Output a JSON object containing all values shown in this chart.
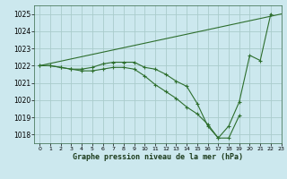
{
  "title": "Graphe pression niveau de la mer (hPa)",
  "background_color": "#cce8ee",
  "grid_color": "#aacccc",
  "line_color": "#2d6e2d",
  "xlim": [
    -0.5,
    23
  ],
  "ylim": [
    1017.5,
    1025.5
  ],
  "yticks": [
    1018,
    1019,
    1020,
    1021,
    1022,
    1023,
    1024,
    1025
  ],
  "xticks": [
    0,
    1,
    2,
    3,
    4,
    5,
    6,
    7,
    8,
    9,
    10,
    11,
    12,
    13,
    14,
    15,
    16,
    17,
    18,
    19,
    20,
    21,
    22,
    23
  ],
  "series": [
    {
      "x": [
        0,
        23
      ],
      "y": [
        1022.0,
        1025.0
      ],
      "marker": false
    },
    {
      "x": [
        0,
        1,
        2,
        3,
        4,
        5,
        6,
        7,
        8,
        9,
        10,
        11,
        12,
        13,
        14,
        15,
        16,
        17,
        18,
        19,
        20,
        21,
        22
      ],
      "y": [
        1022.0,
        1022.0,
        1021.9,
        1021.8,
        1021.8,
        1021.9,
        1022.1,
        1022.2,
        1022.2,
        1022.2,
        1021.9,
        1021.8,
        1021.5,
        1021.1,
        1020.8,
        1019.8,
        1018.5,
        1017.8,
        1018.5,
        1019.9,
        1022.6,
        1022.3,
        1025.0
      ],
      "marker": true
    },
    {
      "x": [
        0,
        1,
        2,
        3,
        4,
        5,
        6,
        7,
        8,
        9,
        10,
        11,
        12,
        13,
        14,
        15,
        16,
        17,
        18,
        19
      ],
      "y": [
        1022.0,
        1022.0,
        1021.9,
        1021.8,
        1021.7,
        1021.7,
        1021.8,
        1021.9,
        1021.9,
        1021.8,
        1021.4,
        1020.9,
        1020.5,
        1020.1,
        1019.6,
        1019.2,
        1018.6,
        1017.8,
        1017.8,
        1019.1
      ],
      "marker": true
    }
  ]
}
